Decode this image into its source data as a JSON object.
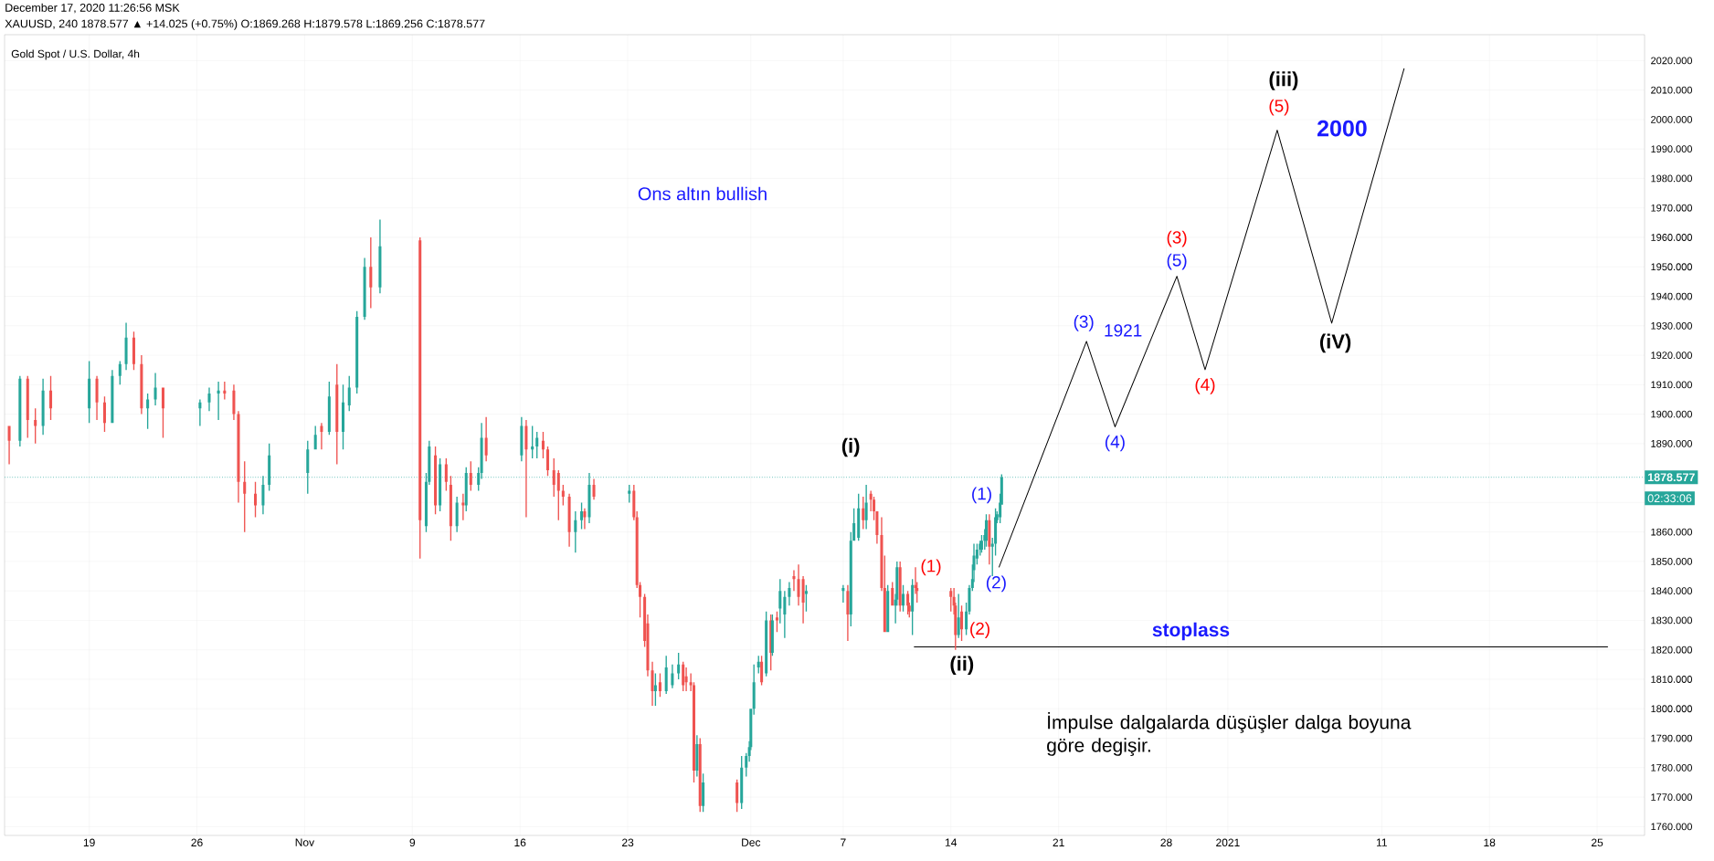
{
  "chart_data": {
    "type": "candlestick",
    "title": "Gold Spot / U.S. Dollar, 4h",
    "subtitle": "XAUUSD, 240  1878.577 ▲ +14.025 (+0.75%) O:1869.268 H:1879.578 L:1869.256 C:1878.577",
    "x": [
      "2020-10-13T19:12",
      "2020-10-14T12:00",
      "2020-10-15T00:00",
      "2020-10-15T12:00",
      "2020-10-16T00:00",
      "2020-10-16T12:00",
      "2020-10-19T00:00",
      "2020-10-19T12:00",
      "2020-10-20T00:00",
      "2020-10-20T12:00",
      "2020-10-21T00:00",
      "2020-10-21T09:36",
      "2020-10-21T21:36",
      "2020-10-22T09:36",
      "2020-10-22T19:12",
      "2020-10-23T07:12",
      "2020-10-23T19:12",
      "2020-10-26T04:48",
      "2020-10-26T19:12",
      "2020-10-27T09:36",
      "2020-10-27T19:12",
      "2020-10-28T09:36",
      "2020-10-28T16:48",
      "2020-10-29T02:24",
      "2020-10-29T19:12",
      "2020-10-30T07:12",
      "2020-10-30T16:48",
      "2020-11-02T04:48",
      "2020-11-02T16:48",
      "2020-11-03T02:24",
      "2020-11-03T14:24",
      "2020-11-04T02:24",
      "2020-11-04T12:00",
      "2020-11-04T21:36",
      "2020-11-05T09:36",
      "2020-11-05T21:36",
      "2020-11-06T07:12",
      "2020-11-06T21:36",
      "2020-11-09T12:00",
      "2020-11-09T21:36",
      "2020-11-10T02:24",
      "2020-11-10T12:00",
      "2020-11-10T19:12",
      "2020-11-11T04:48",
      "2020-11-11T12:00",
      "2020-11-11T21:36",
      "2020-11-12T07:12",
      "2020-11-12T12:00",
      "2020-11-12T19:12",
      "2020-11-13T07:12",
      "2020-11-13T12:00",
      "2020-11-13T19:12",
      "2020-11-16T02:24",
      "2020-11-16T09:36",
      "2020-11-16T19:12",
      "2020-11-17T02:24",
      "2020-11-17T12:00",
      "2020-11-17T19:12",
      "2020-11-18T04:48",
      "2020-11-18T12:00",
      "2020-11-18T19:12",
      "2020-11-19T04:48",
      "2020-11-19T14:24",
      "2020-11-20T00:00",
      "2020-11-20T04:48",
      "2020-11-20T12:00",
      "2020-11-20T19:12",
      "2020-11-23T02:24",
      "2020-11-23T09:36",
      "2020-11-23T14:24",
      "2020-11-23T19:12",
      "2020-11-24T02:24",
      "2020-11-24T07:12",
      "2020-11-24T14:24",
      "2020-11-24T19:12",
      "2020-11-25T02:24",
      "2020-11-25T12:00",
      "2020-11-25T21:36",
      "2020-11-26T07:12",
      "2020-11-26T14:24",
      "2020-11-26T19:12",
      "2020-11-27T02:24",
      "2020-11-27T07:12",
      "2020-11-27T12:00",
      "2020-11-27T16:48",
      "2020-11-27T21:36",
      "2020-11-30T02:24",
      "2020-11-30T09:36",
      "2020-11-30T16:48",
      "2020-11-30T21:36",
      "2020-12-01T00:00",
      "2020-12-01T04:48",
      "2020-12-01T12:00",
      "2020-12-01T16:48",
      "2020-12-02T00:00",
      "2020-12-02T07:12",
      "2020-12-02T09:36",
      "2020-12-02T16:48",
      "2020-12-02T21:36",
      "2020-12-03T04:48",
      "2020-12-03T12:00",
      "2020-12-03T19:12",
      "2020-12-04T02:24",
      "2020-12-04T09:36",
      "2020-12-04T14:24",
      "2020-12-07T00:00",
      "2020-12-07T07:12",
      "2020-12-07T12:00",
      "2020-12-07T16:48",
      "2020-12-08T00:00",
      "2020-12-08T07:12",
      "2020-12-08T12:00",
      "2020-12-08T19:12",
      "2020-12-09T00:00",
      "2020-12-09T04:48",
      "2020-12-09T12:00",
      "2020-12-09T16:48",
      "2020-12-09T21:36",
      "2020-12-10T04:48",
      "2020-12-10T09:36",
      "2020-12-10T12:00",
      "2020-12-10T16:48",
      "2020-12-10T21:36",
      "2020-12-11T04:48",
      "2020-12-11T07:12",
      "2020-12-11T12:00",
      "2020-12-11T16:48",
      "2020-12-11T19:12",
      "2020-12-14T00:00",
      "2020-12-14T04:48",
      "2020-12-14T07:12",
      "2020-12-14T12:00",
      "2020-12-14T16:48",
      "2020-12-15T00:00",
      "2020-12-15T04:48",
      "2020-12-15T09:36",
      "2020-12-15T12:00",
      "2020-12-15T16:48",
      "2020-12-15T21:36",
      "2020-12-16T00:00",
      "2020-12-16T04:48",
      "2020-12-16T07:12",
      "2020-12-16T12:00",
      "2020-12-16T16:48",
      "2020-12-16T21:36",
      "2020-12-17T00:00",
      "2020-12-17T04:48",
      "2020-12-17T07:12"
    ],
    "ohlc": [
      [
        1896,
        1896,
        1883,
        1891
      ],
      [
        1891,
        1913,
        1889,
        1912
      ],
      [
        1912,
        1913,
        1892,
        1898
      ],
      [
        1898,
        1902,
        1890,
        1896
      ],
      [
        1896,
        1912,
        1893,
        1908
      ],
      [
        1908,
        1913,
        1898,
        1902
      ],
      [
        1902,
        1918,
        1897,
        1912
      ],
      [
        1912,
        1913,
        1898,
        1904
      ],
      [
        1904,
        1906,
        1894,
        1897
      ],
      [
        1897,
        1915,
        1897,
        1913
      ],
      [
        1913,
        1918,
        1910,
        1917
      ],
      [
        1917,
        1931,
        1915,
        1926
      ],
      [
        1926,
        1928,
        1915,
        1917
      ],
      [
        1917,
        1920,
        1900,
        1902
      ],
      [
        1902,
        1907,
        1895,
        1905
      ],
      [
        1905,
        1914,
        1903,
        1909
      ],
      [
        1909,
        1909,
        1892,
        1902
      ],
      [
        1902,
        1905,
        1896,
        1904
      ],
      [
        1904,
        1909,
        1901,
        1907
      ],
      [
        1907,
        1911,
        1898,
        1908
      ],
      [
        1908,
        1911,
        1905,
        1907
      ],
      [
        1908,
        1910,
        1898,
        1900
      ],
      [
        1900,
        1901,
        1870,
        1877
      ],
      [
        1877,
        1884,
        1860,
        1873
      ],
      [
        1873,
        1877,
        1865,
        1869
      ],
      [
        1869,
        1879,
        1866,
        1876
      ],
      [
        1876,
        1890,
        1874,
        1886
      ],
      [
        1880,
        1891,
        1873,
        1888
      ],
      [
        1888,
        1896,
        1888,
        1893
      ],
      [
        1896,
        1897,
        1888,
        1894
      ],
      [
        1894,
        1911,
        1893,
        1906
      ],
      [
        1910,
        1917,
        1883,
        1894
      ],
      [
        1894,
        1910,
        1888,
        1904
      ],
      [
        1903,
        1913,
        1901,
        1909
      ],
      [
        1909,
        1935,
        1907,
        1933
      ],
      [
        1933,
        1953,
        1932,
        1950
      ],
      [
        1950,
        1960,
        1936,
        1943
      ],
      [
        1943,
        1966,
        1941,
        1957
      ],
      [
        1959,
        1960,
        1851,
        1864
      ],
      [
        1862,
        1880,
        1860,
        1877
      ],
      [
        1877,
        1891,
        1876,
        1889
      ],
      [
        1886,
        1889,
        1866,
        1869
      ],
      [
        1869,
        1885,
        1867,
        1883
      ],
      [
        1883,
        1885,
        1874,
        1877
      ],
      [
        1876,
        1879,
        1857,
        1862
      ],
      [
        1862,
        1872,
        1860,
        1870
      ],
      [
        1870,
        1873,
        1864,
        1869
      ],
      [
        1869,
        1882,
        1867,
        1880
      ],
      [
        1880,
        1884,
        1874,
        1876
      ],
      [
        1876,
        1882,
        1874,
        1880
      ],
      [
        1880,
        1897,
        1878,
        1892
      ],
      [
        1892,
        1899,
        1884,
        1886
      ],
      [
        1886,
        1899,
        1884,
        1896
      ],
      [
        1896,
        1898,
        1865,
        1888
      ],
      [
        1888,
        1896,
        1885,
        1889
      ],
      [
        1889,
        1894,
        1885,
        1892
      ],
      [
        1891,
        1894,
        1885,
        1888
      ],
      [
        1888,
        1889,
        1879,
        1881
      ],
      [
        1881,
        1885,
        1872,
        1876
      ],
      [
        1880,
        1881,
        1864,
        1874
      ],
      [
        1874,
        1876,
        1869,
        1872
      ],
      [
        1872,
        1873,
        1855,
        1860
      ],
      [
        1860,
        1867,
        1853,
        1864
      ],
      [
        1864,
        1870,
        1861,
        1867
      ],
      [
        1867,
        1868,
        1861,
        1865
      ],
      [
        1865,
        1880,
        1863,
        1876
      ],
      [
        1876,
        1878,
        1871,
        1872
      ],
      [
        1873,
        1876,
        1870,
        1874
      ],
      [
        1874,
        1876,
        1864,
        1865
      ],
      [
        1865,
        1867,
        1841,
        1842
      ],
      [
        1842,
        1843,
        1831,
        1838
      ],
      [
        1838,
        1839,
        1821,
        1823
      ],
      [
        1829,
        1832,
        1811,
        1813
      ],
      [
        1813,
        1816,
        1801,
        1806
      ],
      [
        1806,
        1812,
        1801,
        1808
      ],
      [
        1809,
        1812,
        1804,
        1806
      ],
      [
        1806,
        1818,
        1805,
        1814
      ],
      [
        1808,
        1815,
        1807,
        1812
      ],
      [
        1812,
        1819,
        1810,
        1815
      ],
      [
        1815,
        1816,
        1806,
        1808
      ],
      [
        1811,
        1814,
        1806,
        1809
      ],
      [
        1809,
        1812,
        1806,
        1808
      ],
      [
        1808,
        1809,
        1775,
        1779
      ],
      [
        1779,
        1791,
        1777,
        1788
      ],
      [
        1788,
        1790,
        1765,
        1767
      ],
      [
        1767,
        1778,
        1765,
        1775
      ],
      [
        1775,
        1776,
        1765,
        1768
      ],
      [
        1768,
        1784,
        1766,
        1780
      ],
      [
        1780,
        1785,
        1777,
        1784
      ],
      [
        1784,
        1789,
        1782,
        1787
      ],
      [
        1787,
        1800,
        1786,
        1800
      ],
      [
        1800,
        1815,
        1798,
        1809
      ],
      [
        1814,
        1818,
        1812,
        1816
      ],
      [
        1816,
        1818,
        1808,
        1809
      ],
      [
        1812,
        1833,
        1811,
        1830
      ],
      [
        1830,
        1832,
        1813,
        1819
      ],
      [
        1819,
        1832,
        1818,
        1830
      ],
      [
        1831,
        1833,
        1826,
        1830
      ],
      [
        1834,
        1844,
        1829,
        1840
      ],
      [
        1832,
        1840,
        1824,
        1838
      ],
      [
        1838,
        1843,
        1835,
        1841
      ],
      [
        1845,
        1847,
        1840,
        1844
      ],
      [
        1844,
        1849,
        1835,
        1838
      ],
      [
        1844,
        1845,
        1829,
        1836
      ],
      [
        1839,
        1842,
        1833,
        1840
      ],
      [
        1840,
        1842,
        1836,
        1841
      ],
      [
        1840,
        1842,
        1823,
        1832
      ],
      [
        1832,
        1860,
        1828,
        1857
      ],
      [
        1857,
        1868,
        1857,
        1863
      ],
      [
        1858,
        1873,
        1857,
        1868
      ],
      [
        1868,
        1872,
        1861,
        1864
      ],
      [
        1864,
        1876,
        1861,
        1870
      ],
      [
        1873,
        1874,
        1867,
        1871
      ],
      [
        1871,
        1872,
        1864,
        1867
      ],
      [
        1867,
        1867,
        1856,
        1859
      ],
      [
        1859,
        1865,
        1840,
        1841
      ],
      [
        1841,
        1852,
        1826,
        1826
      ],
      [
        1826,
        1842,
        1826,
        1840
      ],
      [
        1841,
        1843,
        1835,
        1835
      ],
      [
        1835,
        1839,
        1829,
        1837
      ],
      [
        1837,
        1850,
        1835,
        1848
      ],
      [
        1848,
        1850,
        1833,
        1835
      ],
      [
        1835,
        1842,
        1833,
        1839
      ],
      [
        1839,
        1840,
        1832,
        1835
      ],
      [
        1835,
        1836,
        1831,
        1833
      ],
      [
        1833,
        1844,
        1825,
        1842
      ],
      [
        1842,
        1848,
        1839,
        1841
      ],
      [
        1841,
        1843,
        1836,
        1840
      ],
      [
        1840,
        1841,
        1833,
        1838
      ],
      [
        1838,
        1841,
        1832,
        1835
      ],
      [
        1835,
        1836,
        1820,
        1825
      ],
      [
        1825,
        1839,
        1824,
        1831
      ],
      [
        1833,
        1835,
        1823,
        1827
      ],
      [
        1827,
        1836,
        1825,
        1833
      ],
      [
        1833,
        1842,
        1832,
        1841
      ],
      [
        1841,
        1849,
        1840,
        1844
      ],
      [
        1847,
        1856,
        1843,
        1852
      ],
      [
        1851,
        1856,
        1849,
        1854
      ],
      [
        1854,
        1857,
        1852,
        1856
      ],
      [
        1854,
        1859,
        1853,
        1857
      ],
      [
        1857,
        1861,
        1854,
        1859
      ],
      [
        1857,
        1866,
        1855,
        1864
      ],
      [
        1864,
        1866,
        1849,
        1855
      ],
      [
        1855,
        1858,
        1845,
        1856
      ],
      [
        1856,
        1868,
        1852,
        1865
      ],
      [
        1864,
        1867,
        1863,
        1866
      ],
      [
        1865,
        1873,
        1863,
        1870
      ],
      [
        1869.268,
        1879.578,
        1869.256,
        1878.577
      ]
    ],
    "series": [
      {
        "type": "line",
        "color": "#000000",
        "x": [
          "2020-12-17T03:00",
          "2020-12-22T19:30",
          "2020-12-24T16:00",
          "2020-12-28T16:30",
          "2020-12-30T12:30",
          "2021-01-04T05:00",
          "2021-01-07T18:00",
          "2021-01-12T11:00"
        ],
        "values": [
          1848.0,
          1924.7,
          1895.7,
          1946.8,
          1915.1,
          1996.4,
          1930.9,
          2017.4
        ]
      },
      {
        "type": "line",
        "color": "#000000",
        "x": [
          "2020-12-11T14:24",
          "2021-01-25T16:48"
        ],
        "values": [
          1821,
          1821
        ]
      }
    ],
    "xlim": [
      "2020-10-13T12:00",
      "2021-01-28T02:00"
    ],
    "ylim": [
      1757.0,
      2028.8
    ],
    "xticks": [
      {
        "value": "2020-10-19",
        "label": "19"
      },
      {
        "value": "2020-10-26",
        "label": "26"
      },
      {
        "value": "2020-11-02",
        "label": "Nov"
      },
      {
        "value": "2020-11-09",
        "label": "9"
      },
      {
        "value": "2020-11-16",
        "label": "16"
      },
      {
        "value": "2020-11-23",
        "label": "23"
      },
      {
        "value": "2020-12-01",
        "label": "Dec"
      },
      {
        "value": "2020-12-07",
        "label": "7"
      },
      {
        "value": "2020-12-14",
        "label": "14"
      },
      {
        "value": "2020-12-21",
        "label": "21"
      },
      {
        "value": "2020-12-28",
        "label": "28"
      },
      {
        "value": "2021-01-01",
        "label": "2021"
      },
      {
        "value": "2021-01-11",
        "label": "11"
      },
      {
        "value": "2021-01-18",
        "label": "18"
      },
      {
        "value": "2021-01-25",
        "label": "25"
      }
    ],
    "yticks": [
      {
        "value": 1760,
        "label": "1760.000"
      },
      {
        "value": 1770,
        "label": "1770.000"
      },
      {
        "value": 1780,
        "label": "1780.000"
      },
      {
        "value": 1790,
        "label": "1790.000"
      },
      {
        "value": 1800,
        "label": "1800.000"
      },
      {
        "value": 1810,
        "label": "1810.000"
      },
      {
        "value": 1820,
        "label": "1820.000"
      },
      {
        "value": 1830,
        "label": "1830.000"
      },
      {
        "value": 1840,
        "label": "1840.000"
      },
      {
        "value": 1850,
        "label": "1850.000"
      },
      {
        "value": 1860,
        "label": "1860.000"
      },
      {
        "value": 1870,
        "label": null
      },
      {
        "value": 1890,
        "label": "1890.000"
      },
      {
        "value": 1900,
        "label": "1900.000"
      },
      {
        "value": 1910,
        "label": "1910.000"
      },
      {
        "value": 1920,
        "label": "1920.000"
      },
      {
        "value": 1930,
        "label": "1930.000"
      },
      {
        "value": 1940,
        "label": "1940.000"
      },
      {
        "value": 1950,
        "label": "1950.000"
      },
      {
        "value": 1960,
        "label": "1960.000"
      },
      {
        "value": 1970,
        "label": "1970.000"
      },
      {
        "value": 1980,
        "label": "1980.000"
      },
      {
        "value": 1990,
        "label": "1990.000"
      },
      {
        "value": 2000,
        "label": "2000.000"
      },
      {
        "value": 2010,
        "label": "2010.000"
      },
      {
        "value": 2020,
        "label": "2020.000"
      }
    ],
    "grid": true,
    "ref_lines": [
      {
        "axis": "y",
        "value": 1878.577,
        "label": "1878.577",
        "color": "#26a69a",
        "line_style": "dotted"
      }
    ],
    "annotations": [
      "December 17, 2020 11:26:56 MSK",
      "Ons altın bullish",
      "İmpulse dalgalarda düşüşler dalga boyuna göre degişir.",
      "02:33:06",
      {
        "text": "(i)",
        "x": "2020-12-08T12:00",
        "y": 1876
      },
      {
        "text": "(ii)",
        "x": "2020-12-14T07:12",
        "y": 1820
      },
      {
        "text": "(1)",
        "x": "2020-12-11T16:48",
        "y": 1848
      },
      {
        "text": "(2)",
        "x": "2020-12-14T16:48",
        "y": 1823
      },
      {
        "text": "(1)",
        "x": "2020-12-16T07:12",
        "y": 1866
      },
      {
        "text": "(2)",
        "x": "2020-12-17T03:00",
        "y": 1848.0
      },
      {
        "text": "(3)",
        "x": "2020-12-22T19:30",
        "y": 1924.7
      },
      {
        "text": "1921",
        "x": "2020-12-22T19:30",
        "y": 1924.7
      },
      {
        "text": "(4)",
        "x": "2020-12-24T16:00",
        "y": 1895.7
      },
      {
        "text": "(3)",
        "x": "2020-12-28T16:30",
        "y": 1946.8
      },
      {
        "text": "(5)",
        "x": "2020-12-28T16:30",
        "y": 1946.8
      },
      {
        "text": "(4)",
        "x": "2020-12-30T12:30",
        "y": 1915.1
      },
      {
        "text": "(iii)",
        "x": "2021-01-04T05:00",
        "y": 1996.4
      },
      {
        "text": "(5)",
        "x": "2021-01-04T05:00",
        "y": 1996.4
      },
      {
        "text": "2000",
        "x": "2021-01-04T05:00",
        "y": 1996.4
      },
      {
        "text": "(iV)",
        "x": "2021-01-07T18:00",
        "y": 1930.9
      },
      {
        "text": "stoplass",
        "x": "2020-12-29T14:24",
        "y": 1821
      }
    ]
  }
}
